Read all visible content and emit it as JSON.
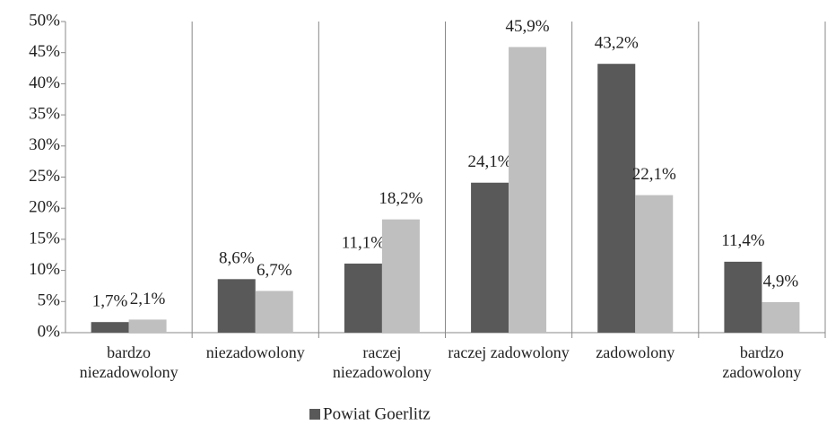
{
  "chart_data": {
    "type": "bar",
    "categories": [
      "bardzo niezadowolony",
      "niezadowolony",
      "raczej niezadowolony",
      "raczej zadowolony",
      "zadowolony",
      "bardzo zadowolony"
    ],
    "series": [
      {
        "name": "Powiat Goerlitz",
        "color": "#595959",
        "values": [
          1.7,
          8.6,
          11.1,
          24.1,
          43.2,
          11.4
        ],
        "value_labels": [
          "1,7%",
          "8,6%",
          "11,1%",
          "24,1%",
          "43,2%",
          "11,4%"
        ]
      },
      {
        "color": "#bfbfbf",
        "values": [
          2.1,
          6.7,
          18.2,
          45.9,
          22.1,
          4.9
        ],
        "value_labels": [
          "2,1%",
          "6,7%",
          "18,2%",
          "45,9%",
          "22,1%",
          "4,9%"
        ]
      }
    ],
    "ylim": [
      0,
      50
    ],
    "yticks": [
      {
        "value": 0,
        "label": "0%"
      },
      {
        "value": 5,
        "label": "5%"
      },
      {
        "value": 10,
        "label": "10%"
      },
      {
        "value": 15,
        "label": "15%"
      },
      {
        "value": 20,
        "label": "20%"
      },
      {
        "value": 25,
        "label": "25%"
      },
      {
        "value": 30,
        "label": "30%"
      },
      {
        "value": 35,
        "label": "35%"
      },
      {
        "value": 40,
        "label": "40%"
      },
      {
        "value": 45,
        "label": "45%"
      },
      {
        "value": 50,
        "label": "50%"
      }
    ],
    "legend": "bottom"
  }
}
